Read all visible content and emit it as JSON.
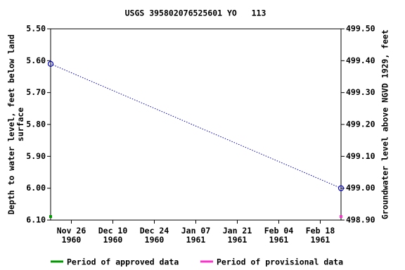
{
  "chart_data": {
    "type": "line",
    "title": "USGS 395802076525601 YO   113",
    "y_label": "Depth to water level, feet below land\nsurface",
    "y2_label": "Groundwater level above NGVD 1929, feet",
    "x": [
      "1960-11-19",
      "1961-02-25"
    ],
    "series": [
      {
        "name": "Depth to water level",
        "color": "#0000cc",
        "values": [
          5.61,
          6.0
        ]
      }
    ],
    "periods": [
      {
        "name": "Period of approved data",
        "color": "#009900",
        "x": [
          "1960-11-19"
        ]
      },
      {
        "name": "Period of provisional data",
        "color": "#ff33cc",
        "x": [
          "1961-02-25"
        ]
      }
    ],
    "xlim": [
      "1960-11-19",
      "1961-02-25"
    ],
    "xticks": [
      {
        "value": "1960-11-26",
        "label": "Nov 26\n1960"
      },
      {
        "value": "1960-12-10",
        "label": "Dec 10\n1960"
      },
      {
        "value": "1960-12-24",
        "label": "Dec 24\n1960"
      },
      {
        "value": "1961-01-07",
        "label": "Jan 07\n1961"
      },
      {
        "value": "1961-01-21",
        "label": "Jan 21\n1961"
      },
      {
        "value": "1961-02-04",
        "label": "Feb 04\n1961"
      },
      {
        "value": "1961-02-18",
        "label": "Feb 18\n1961"
      }
    ],
    "ylim": [
      5.5,
      6.1
    ],
    "y_inverted": true,
    "yticks": [
      {
        "value": 5.5,
        "label": "5.50"
      },
      {
        "value": 5.6,
        "label": "5.60"
      },
      {
        "value": 5.7,
        "label": "5.70"
      },
      {
        "value": 5.8,
        "label": "5.80"
      },
      {
        "value": 5.9,
        "label": "5.90"
      },
      {
        "value": 6.0,
        "label": "6.00"
      },
      {
        "value": 6.1,
        "label": "6.10"
      }
    ],
    "y2lim": [
      499.5,
      498.9
    ],
    "y2ticks": [
      {
        "value": 499.5,
        "label": "499.50"
      },
      {
        "value": 499.4,
        "label": "499.40"
      },
      {
        "value": 499.3,
        "label": "499.30"
      },
      {
        "value": 499.2,
        "label": "499.20"
      },
      {
        "value": 499.1,
        "label": "499.10"
      },
      {
        "value": 499.0,
        "label": "499.00"
      },
      {
        "value": 498.9,
        "label": "498.90"
      }
    ]
  }
}
